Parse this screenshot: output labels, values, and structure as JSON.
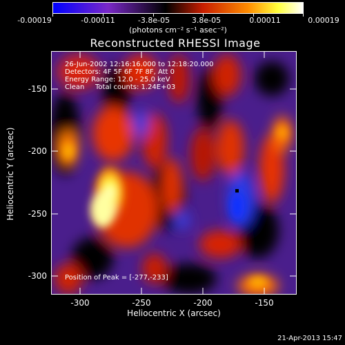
{
  "colorbar": {
    "ticks": [
      "-0.00019",
      "-0.00011",
      "-3.8e-05",
      "3.8e-05",
      "0.00011",
      "0.00019"
    ],
    "units": "(photons cm⁻² s⁻¹ asec⁻²)",
    "colors": [
      "#0000ff",
      "#7a28c8",
      "#000000",
      "#c81e00",
      "#ff8c00",
      "#ffff3c",
      "#ffffff"
    ]
  },
  "title": "Reconstructed RHESSI Image",
  "info": {
    "line1": "26-Jun-2002 12:16:16.000 to 12:18:20.000",
    "line2": "Detectors: 4F 5F 6F 7F 8F, Att 0",
    "line3": "Energy Range: 12.0 - 25.0 keV",
    "line4_a": "Clean",
    "line4_b": "Total counts: 1.24E+03",
    "peak": "Position of Peak = [-277,-233]"
  },
  "axes": {
    "xlabel": "Heliocentric X (arcsec)",
    "ylabel": "Heliocentric Y (arcsec)",
    "xticks": [
      "-300",
      "-250",
      "-200",
      "-150"
    ],
    "yticks": [
      "-150",
      "-200",
      "-250",
      "-300"
    ]
  },
  "timestamp": "21-Apr-2013 15:47"
}
